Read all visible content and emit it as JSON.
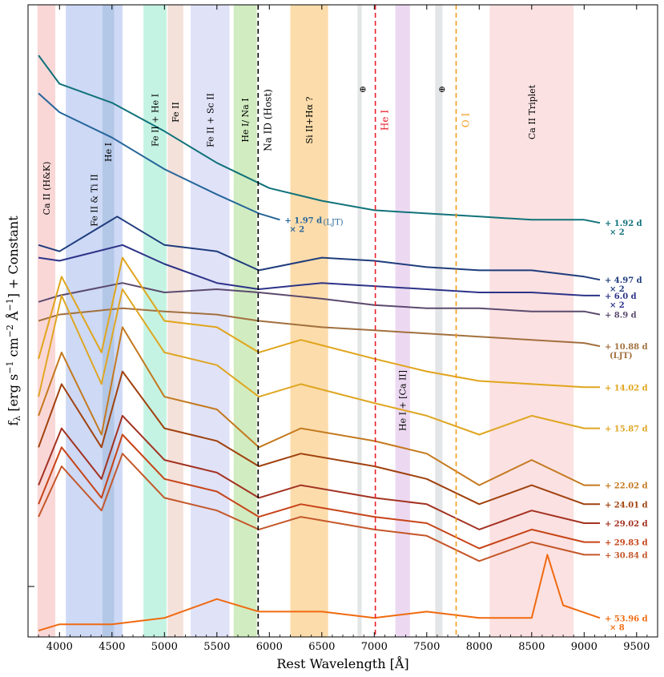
{
  "chart_data": {
    "type": "line",
    "title": "",
    "xlabel": "Rest Wavelength [Å]",
    "ylabel_parts": {
      "f": "f",
      "sub": "λ",
      "open": " [erg s",
      "e1": "−1",
      "cm": " cm",
      "e2": "−2",
      "ang": " Å",
      "e3": "−1",
      "close": "] + Constant"
    },
    "xlim": [
      3700,
      9700
    ],
    "ylim": [
      0,
      1
    ],
    "x_ticks": [
      4000,
      4500,
      5000,
      5500,
      6000,
      6500,
      7000,
      7500,
      8000,
      8500,
      9000,
      9500
    ],
    "x_tick_labels": [
      "4000",
      "4500",
      "5000",
      "5500",
      "6000",
      "6500",
      "7000",
      "7500",
      "8000",
      "8500",
      "9000",
      "9500"
    ],
    "bands": [
      {
        "label": "Ca II (H&K)",
        "x0": 3790,
        "x1": 3960,
        "color": "#f9d7d7"
      },
      {
        "label": "Fe II & Ti II",
        "x0": 4060,
        "x1": 4600,
        "color": "#cdd9f5"
      },
      {
        "label": "He I",
        "x0": 4410,
        "x1": 4520,
        "color": "#b3c7e6"
      },
      {
        "label": "Fe II + He I",
        "x0": 4800,
        "x1": 5020,
        "color": "#c5f3e3"
      },
      {
        "label": "Fe II",
        "x0": 5030,
        "x1": 5180,
        "color": "#f3e1da"
      },
      {
        "label": "Fe II + Sc II",
        "x0": 5250,
        "x1": 5620,
        "color": "#e0e2f8"
      },
      {
        "label": "He I/ Na I",
        "x0": 5660,
        "x1": 5880,
        "color": "#d1ecc0"
      },
      {
        "label": "Si II+Hα ?",
        "x0": 6200,
        "x1": 6560,
        "color": "#fcdcab"
      },
      {
        "label": "⊕",
        "x0": 6840,
        "x1": 6880,
        "color": "#e3e5e6"
      },
      {
        "label": "⊕",
        "x0": 7580,
        "x1": 7650,
        "color": "#e3e5e6"
      },
      {
        "label": "He I + [Ca II]",
        "x0": 7200,
        "x1": 7340,
        "color": "#ecd9f1"
      },
      {
        "label": "Ca II Triplet",
        "x0": 8100,
        "x1": 8900,
        "color": "#fbe1e1"
      }
    ],
    "lines": [
      {
        "label": "Na ID (Host)",
        "x": 5893,
        "color": "#000000"
      },
      {
        "label": "He I",
        "x": 7010,
        "color": "#e8202a"
      },
      {
        "label": "O I",
        "x": 7780,
        "color": "#f39c1f"
      }
    ],
    "series": [
      {
        "label": "+ 1.92 d",
        "label2": "× 2",
        "color": "#11727a",
        "x": [
          3800,
          4000,
          4500,
          5000,
          5500,
          6000,
          6500,
          7000,
          7500,
          8000,
          8500,
          9000,
          9150
        ],
        "y": [
          0.92,
          0.875,
          0.845,
          0.8,
          0.75,
          0.71,
          0.69,
          0.675,
          0.67,
          0.665,
          0.66,
          0.66,
          0.655
        ]
      },
      {
        "label": "+ 1.97 d",
        "label2": "× 2",
        "label_extra": "(LJT)",
        "color": "#26659a",
        "x": [
          3800,
          4000,
          4500,
          5000,
          5500,
          5900,
          6100
        ],
        "y": [
          0.86,
          0.83,
          0.79,
          0.74,
          0.7,
          0.67,
          0.66
        ]
      },
      {
        "label": "+ 4.97 d",
        "label2": "× 2",
        "color": "#1f3c7c",
        "x": [
          3800,
          4000,
          4550,
          5000,
          5500,
          5900,
          6500,
          7000,
          7500,
          8000,
          8500,
          9000,
          9150
        ],
        "y": [
          0.62,
          0.61,
          0.665,
          0.62,
          0.61,
          0.58,
          0.6,
          0.595,
          0.585,
          0.58,
          0.58,
          0.57,
          0.565
        ]
      },
      {
        "label": "+ 6.0 d",
        "label2": "× 2",
        "color": "#2d3388",
        "x": [
          3800,
          4000,
          4600,
          5000,
          5500,
          5900,
          6500,
          7000,
          7500,
          8000,
          8500,
          9000,
          9150
        ],
        "y": [
          0.6,
          0.595,
          0.62,
          0.59,
          0.56,
          0.55,
          0.56,
          0.555,
          0.55,
          0.545,
          0.545,
          0.54,
          0.54
        ]
      },
      {
        "label": "+ 8.9 d",
        "label2": "",
        "color": "#5b4a6e",
        "x": [
          3800,
          4000,
          4600,
          5000,
          5500,
          5900,
          6500,
          7000,
          7500,
          8000,
          8500,
          9000,
          9150
        ],
        "y": [
          0.53,
          0.54,
          0.56,
          0.545,
          0.55,
          0.545,
          0.535,
          0.525,
          0.52,
          0.52,
          0.515,
          0.515,
          0.51
        ]
      },
      {
        "label": "+ 10.88 d",
        "label2": "(LJT)",
        "color": "#a2703e",
        "x": [
          3800,
          4000,
          4600,
          5000,
          5500,
          5900,
          6500,
          7000,
          7500,
          8000,
          8500,
          9000,
          9150
        ],
        "y": [
          0.5,
          0.51,
          0.52,
          0.515,
          0.51,
          0.5,
          0.49,
          0.485,
          0.48,
          0.475,
          0.47,
          0.465,
          0.46
        ]
      },
      {
        "label": "+ 14.02 d",
        "label2": "",
        "color": "#e0a51c",
        "x": [
          3800,
          4020,
          4400,
          4600,
          5000,
          5500,
          5900,
          6300,
          7000,
          7500,
          8000,
          8500,
          9000,
          9150
        ],
        "y": [
          0.44,
          0.57,
          0.45,
          0.6,
          0.5,
          0.49,
          0.45,
          0.47,
          0.44,
          0.42,
          0.405,
          0.4,
          0.395,
          0.395
        ]
      },
      {
        "label": "+ 15.87 d",
        "label2": "",
        "color": "#dfa623",
        "x": [
          3800,
          4020,
          4400,
          4600,
          5000,
          5500,
          5900,
          6300,
          7000,
          7500,
          8000,
          8500,
          9000,
          9150
        ],
        "y": [
          0.38,
          0.54,
          0.4,
          0.55,
          0.45,
          0.43,
          0.38,
          0.4,
          0.37,
          0.35,
          0.32,
          0.35,
          0.33,
          0.33
        ]
      },
      {
        "label": "+ 22.02 d",
        "label2": "",
        "color": "#c4791f",
        "x": [
          3800,
          4020,
          4400,
          4600,
          5000,
          5500,
          5900,
          6300,
          7000,
          7500,
          8000,
          8500,
          9000,
          9150
        ],
        "y": [
          0.35,
          0.45,
          0.32,
          0.49,
          0.38,
          0.36,
          0.3,
          0.33,
          0.31,
          0.29,
          0.24,
          0.28,
          0.24,
          0.24
        ]
      },
      {
        "label": "+ 24.01 d",
        "label2": "",
        "color": "#a0420f",
        "x": [
          3800,
          4020,
          4400,
          4600,
          5000,
          5500,
          5900,
          6300,
          7000,
          7500,
          8000,
          8500,
          9000,
          9150
        ],
        "y": [
          0.3,
          0.4,
          0.3,
          0.42,
          0.33,
          0.31,
          0.27,
          0.29,
          0.27,
          0.25,
          0.21,
          0.24,
          0.21,
          0.21
        ]
      },
      {
        "label": "+ 29.02 d",
        "label2": "",
        "color": "#a33222",
        "x": [
          3800,
          4020,
          4400,
          4600,
          5000,
          5500,
          5900,
          6300,
          7000,
          7500,
          8000,
          8500,
          9000,
          9150
        ],
        "y": [
          0.24,
          0.33,
          0.25,
          0.35,
          0.28,
          0.26,
          0.22,
          0.24,
          0.22,
          0.21,
          0.17,
          0.2,
          0.18,
          0.18
        ]
      },
      {
        "label": "+ 29.83 d",
        "label2": "",
        "color": "#c74418",
        "x": [
          3800,
          4020,
          4400,
          4600,
          5000,
          5500,
          5900,
          6300,
          7000,
          7500,
          8000,
          8500,
          9000,
          9150
        ],
        "y": [
          0.21,
          0.3,
          0.22,
          0.32,
          0.25,
          0.23,
          0.19,
          0.21,
          0.19,
          0.18,
          0.14,
          0.17,
          0.15,
          0.15
        ]
      },
      {
        "label": "+ 30.84 d",
        "label2": "",
        "color": "#c4572a",
        "x": [
          3800,
          4020,
          4400,
          4600,
          5000,
          5500,
          5900,
          6300,
          7000,
          7500,
          8000,
          8500,
          9000,
          9150
        ],
        "y": [
          0.19,
          0.27,
          0.2,
          0.29,
          0.22,
          0.2,
          0.17,
          0.19,
          0.17,
          0.16,
          0.12,
          0.15,
          0.13,
          0.13
        ]
      },
      {
        "label": "+ 53.96 d",
        "label2": "× 8",
        "color": "#f06a10",
        "x": [
          3800,
          4000,
          4500,
          5000,
          5500,
          5900,
          6500,
          7000,
          7500,
          8000,
          8500,
          8650,
          8800,
          9150
        ],
        "y": [
          0.01,
          0.02,
          0.02,
          0.03,
          0.06,
          0.04,
          0.04,
          0.03,
          0.04,
          0.03,
          0.03,
          0.13,
          0.05,
          0.03
        ]
      }
    ]
  }
}
